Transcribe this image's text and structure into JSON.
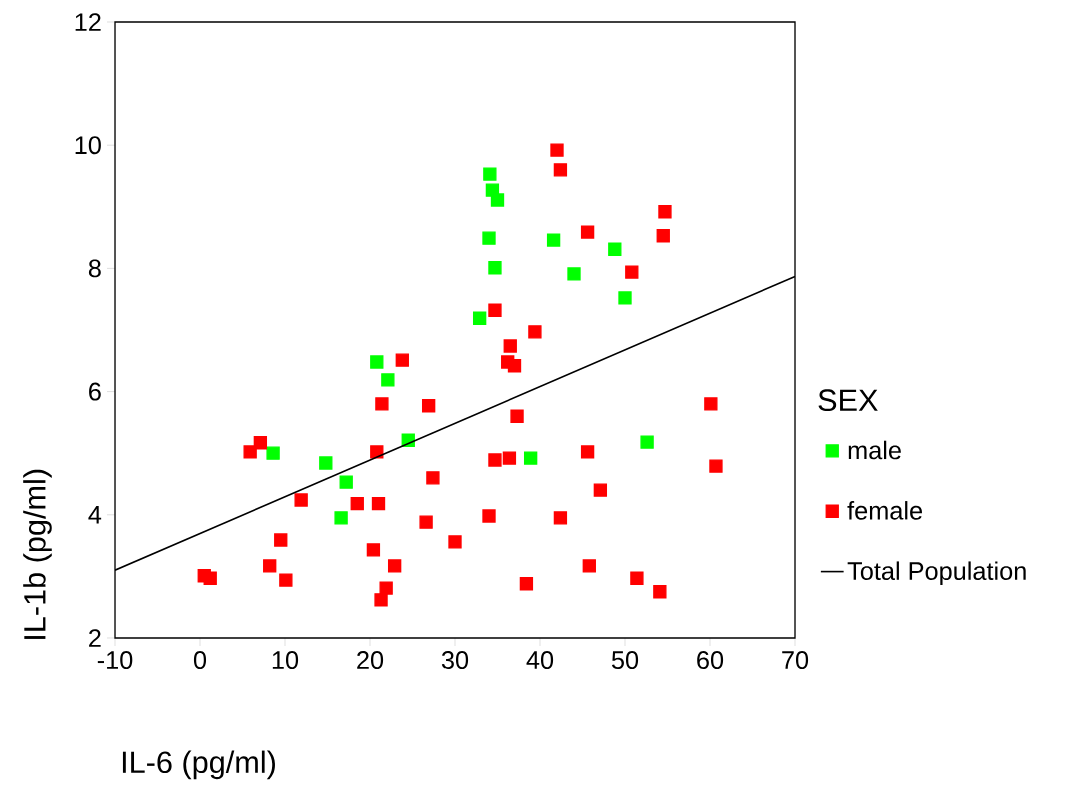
{
  "chart_data": {
    "type": "scatter",
    "xlabel": "IL-6 (pg/ml)",
    "ylabel": "IL-1b (pg/ml)",
    "legend_title": "SEX",
    "legend": "right",
    "marker": "square",
    "grid": false,
    "xlim": [
      -10,
      70
    ],
    "ylim": [
      2,
      12
    ],
    "xticks": [
      -10,
      0,
      10,
      20,
      30,
      40,
      50,
      60,
      70
    ],
    "yticks": [
      2,
      4,
      6,
      8,
      10,
      12
    ],
    "series": [
      {
        "name": "male",
        "color": "#00ff00",
        "x": [
          34.1,
          34.4,
          35.0,
          34.0,
          34.7,
          32.9,
          41.6,
          44.0,
          48.8,
          50.0,
          20.8,
          22.1,
          24.5,
          14.8,
          17.2,
          16.6,
          8.6,
          38.9,
          52.6
        ],
        "values": [
          9.53,
          9.27,
          9.11,
          8.49,
          8.01,
          7.19,
          8.46,
          7.91,
          8.31,
          7.52,
          6.48,
          6.19,
          5.21,
          4.84,
          4.53,
          3.95,
          5.0,
          4.92,
          5.18
        ]
      },
      {
        "name": "female",
        "color": "#ff0000",
        "x": [
          42.0,
          42.4,
          54.7,
          54.5,
          45.6,
          50.8,
          34.7,
          39.4,
          36.5,
          36.2,
          37.0,
          23.8,
          21.4,
          26.9,
          37.3,
          20.8,
          7.1,
          5.9,
          27.4,
          34.7,
          36.4,
          45.6,
          47.1,
          60.7,
          60.1,
          11.9,
          18.5,
          21.0,
          26.6,
          34.0,
          42.4,
          9.5,
          20.4,
          30.0,
          8.2,
          22.9,
          45.8,
          0.5,
          1.2,
          10.1,
          21.9,
          21.3,
          38.4,
          51.4,
          54.1
        ],
        "values": [
          9.92,
          9.6,
          8.92,
          8.53,
          8.59,
          7.94,
          7.32,
          6.97,
          6.74,
          6.48,
          6.42,
          6.51,
          5.8,
          5.77,
          5.6,
          5.02,
          5.17,
          5.02,
          4.6,
          4.89,
          4.92,
          5.02,
          4.4,
          4.79,
          5.8,
          4.24,
          4.18,
          4.18,
          3.88,
          3.98,
          3.95,
          3.59,
          3.43,
          3.56,
          3.17,
          3.17,
          3.17,
          3.01,
          2.97,
          2.94,
          2.81,
          2.62,
          2.88,
          2.97,
          2.75
        ]
      },
      {
        "name": "Total Population",
        "type": "line",
        "color": "#000000",
        "marker": "none",
        "x": [
          -10,
          70
        ],
        "values": [
          3.1,
          7.87
        ]
      }
    ]
  }
}
